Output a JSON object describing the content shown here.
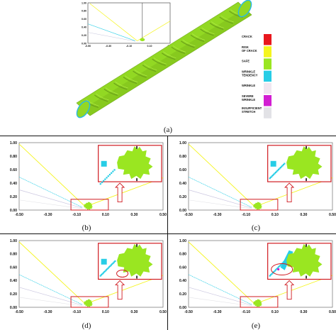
{
  "figure": {
    "captions": {
      "a": "(a)",
      "b": "(b)",
      "c": "(c)",
      "d": "(d)",
      "e": "(e)"
    }
  },
  "legend": {
    "items": [
      {
        "label_lines": [
          "CRACK"
        ],
        "color": "#e8171d"
      },
      {
        "label_lines": [
          "RISK",
          "OF CRACK"
        ],
        "color": "#f5f51e"
      },
      {
        "label_lines": [
          "SAFE"
        ],
        "color": "#9ae621"
      },
      {
        "label_lines": [
          "WRINKLE",
          "TENDENCY"
        ],
        "color": "#27cde6"
      },
      {
        "label_lines": [
          "WRINKLE"
        ],
        "color": "#f0e6f0"
      },
      {
        "label_lines": [
          "SEVERE",
          "WRINKLE"
        ],
        "color": "#d21ed2"
      },
      {
        "label_lines": [
          "INSUFFICIENT",
          "STRETCH"
        ],
        "color": "#e2e2e6"
      }
    ]
  },
  "chart_data": [
    {
      "panel": "a",
      "type": "scatter",
      "x_ticks": [
        "-0.50",
        "-0.30",
        "-0.10",
        "0.10",
        "0.30"
      ],
      "y_ticks": [
        "1.00",
        "0.80",
        "0.60",
        "0.40",
        "0.20",
        "0.00"
      ],
      "xlim": [
        -0.5,
        0.3
      ],
      "ylim": [
        0,
        1
      ]
    },
    {
      "panel": "b",
      "type": "scatter",
      "x_ticks": [
        "-0.50",
        "-0.30",
        "-0.10",
        "0.10",
        "0.30",
        "0.50"
      ],
      "y_ticks": [
        "1.00",
        "0.80",
        "0.60",
        "0.40",
        "0.20",
        "0.00"
      ],
      "xlim": [
        -0.5,
        0.5
      ],
      "ylim": [
        0,
        1
      ]
    },
    {
      "panel": "c",
      "type": "scatter",
      "x_ticks": [
        "-0.50",
        "-0.30",
        "-0.10",
        "0.10",
        "0.30",
        "0.50"
      ],
      "y_ticks": [
        "1.00",
        "0.80",
        "0.60",
        "0.40",
        "0.20",
        "0.00"
      ],
      "xlim": [
        -0.5,
        0.5
      ],
      "ylim": [
        0,
        1
      ]
    },
    {
      "panel": "d",
      "type": "scatter",
      "x_ticks": [
        "-0.50",
        "-0.30",
        "-0.10",
        "0.10",
        "0.30",
        "0.50"
      ],
      "y_ticks": [
        "1.00",
        "0.80",
        "0.60",
        "0.40",
        "0.20",
        "0.00"
      ],
      "xlim": [
        -0.5,
        0.5
      ],
      "ylim": [
        0,
        1
      ]
    },
    {
      "panel": "e",
      "type": "scatter",
      "x_ticks": [
        "-0.50",
        "-0.30",
        "-0.10",
        "0.10",
        "0.30",
        "0.50"
      ],
      "y_ticks": [
        "1.00",
        "0.80",
        "0.60",
        "0.40",
        "0.20",
        "0.00"
      ],
      "xlim": [
        -0.5,
        0.5
      ],
      "ylim": [
        0,
        1
      ]
    }
  ]
}
